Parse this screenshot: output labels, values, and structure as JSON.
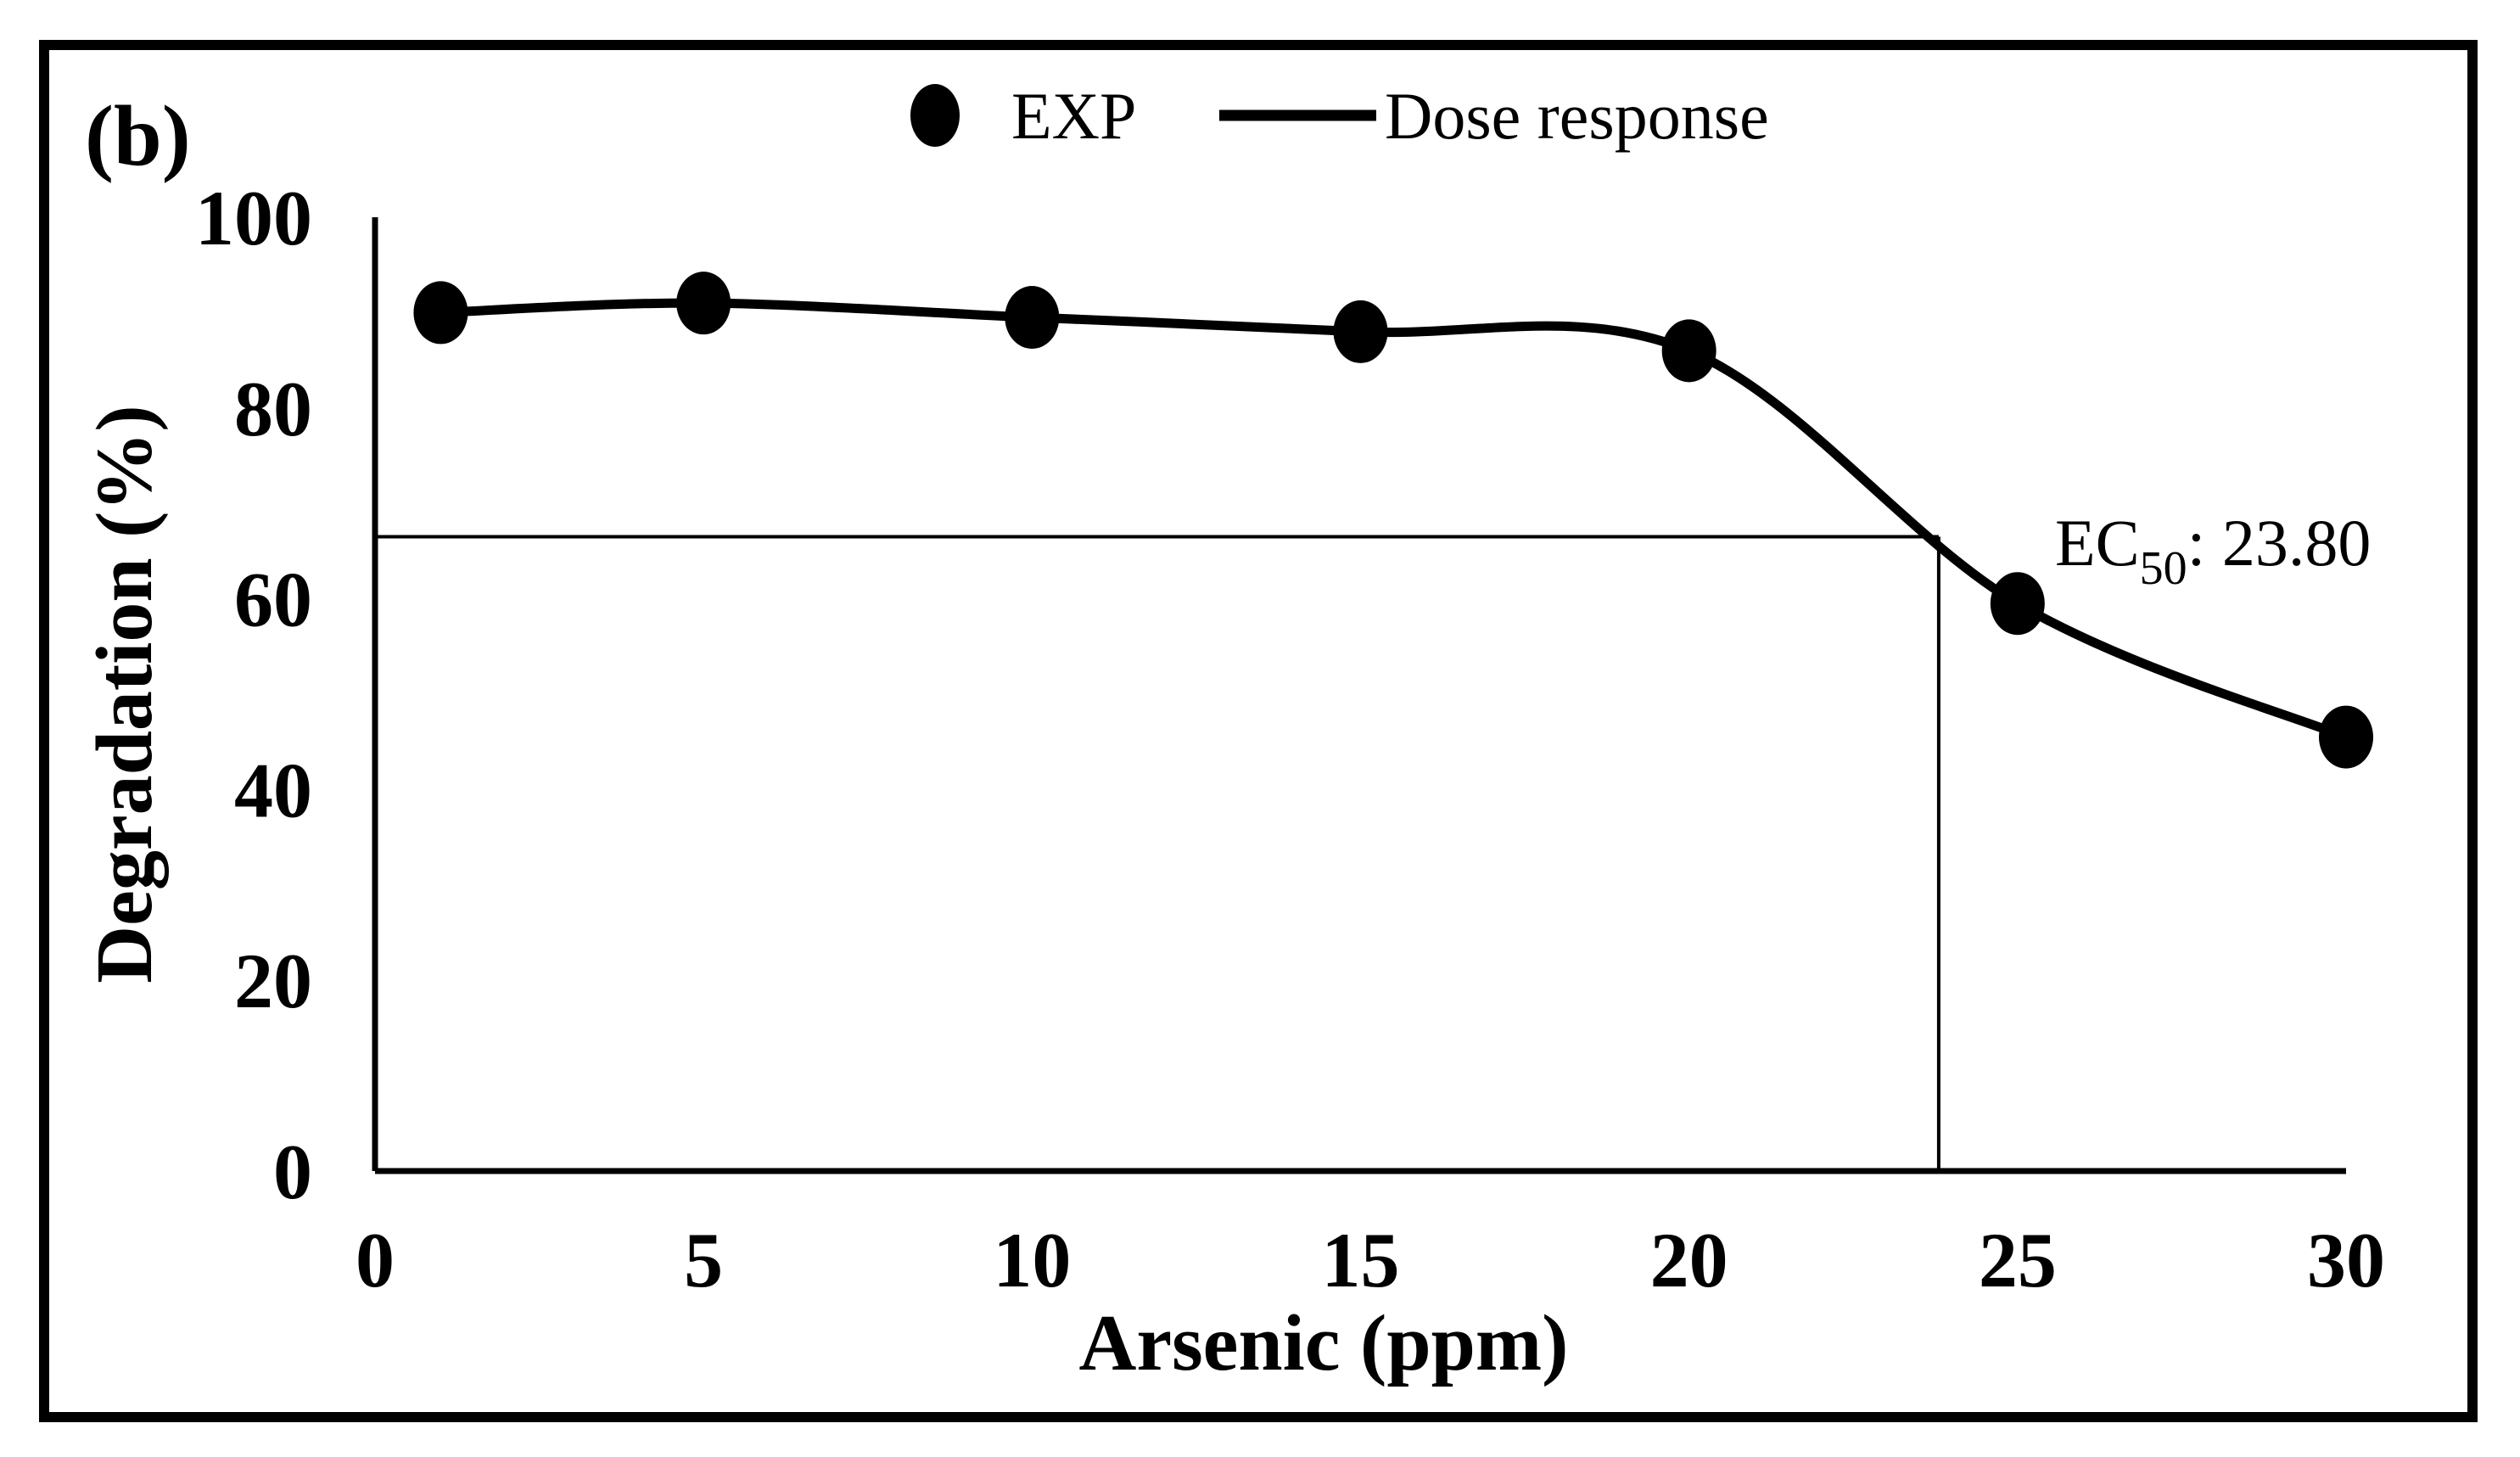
{
  "figure": {
    "panel_label": "(b)",
    "background": "#ffffff",
    "foreground": "#000000"
  },
  "chart_data": {
    "type": "line",
    "title": "",
    "xlabel": "Arsenic (ppm)",
    "ylabel": "Degradation (%)",
    "xlim": [
      0,
      30
    ],
    "ylim": [
      0,
      100
    ],
    "x_ticks": [
      0,
      5,
      10,
      15,
      20,
      25,
      30
    ],
    "y_ticks": [
      0,
      20,
      40,
      60,
      80,
      100
    ],
    "grid": false,
    "legend_position": "top-center",
    "series": [
      {
        "name": "EXP",
        "type": "scatter",
        "marker": "filled-circle",
        "color": "#000000",
        "x": [
          1,
          5,
          10,
          15,
          20,
          25,
          30
        ],
        "y": [
          90,
          91,
          89.5,
          88,
          86,
          59.5,
          45.5
        ]
      },
      {
        "name": "Dose response",
        "type": "smooth-line",
        "color": "#000000",
        "x": [
          1,
          5,
          10,
          15,
          20,
          25,
          30
        ],
        "y": [
          90,
          91,
          89.5,
          88,
          86,
          59.5,
          45.5
        ]
      }
    ],
    "annotation": {
      "ec50": {
        "base": "EC",
        "sub": "50",
        "rest": ": 23.80",
        "x_value": 23.8,
        "y_level": 66.5
      }
    },
    "legend": {
      "items": [
        {
          "marker": "dot",
          "label": "EXP"
        },
        {
          "marker": "line",
          "label": "Dose response"
        }
      ]
    }
  }
}
